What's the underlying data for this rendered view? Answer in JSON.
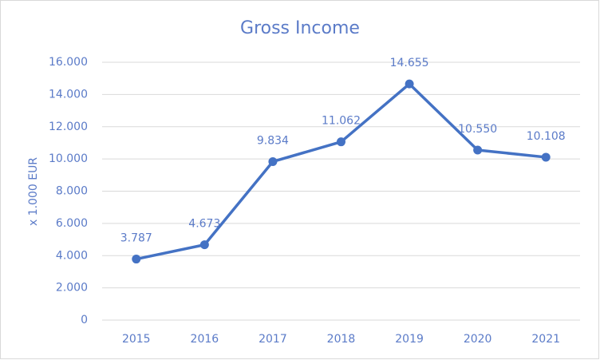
{
  "chart_data": {
    "type": "line",
    "title": "Gross Income",
    "y_label": "x 1.000 EUR",
    "categories": [
      "2015",
      "2016",
      "2017",
      "2018",
      "2019",
      "2020",
      "2021"
    ],
    "series": [
      {
        "color": "#4472c4",
        "values": [
          3787,
          4673,
          9834,
          11062,
          14655,
          10550,
          10108
        ],
        "value_labels": [
          "3.787",
          "4.673",
          "9.834",
          "11.062",
          "14.655",
          "10.550",
          "10.108"
        ]
      }
    ],
    "ylim": [
      0,
      16000
    ],
    "yticks": [
      0,
      {
        "value": 2000,
        "label": "2.000"
      },
      {
        "value": 4000,
        "label": "4.000"
      },
      {
        "value": 6000,
        "label": "6.000"
      },
      {
        "value": 8000,
        "label": "8.000"
      },
      {
        "value": 10000,
        "label": "10.000"
      },
      {
        "value": 12000,
        "label": "12.000"
      },
      {
        "value": 14000,
        "label": "14.000"
      },
      {
        "value": 16000,
        "label": "16.000"
      }
    ],
    "grid": true
  }
}
